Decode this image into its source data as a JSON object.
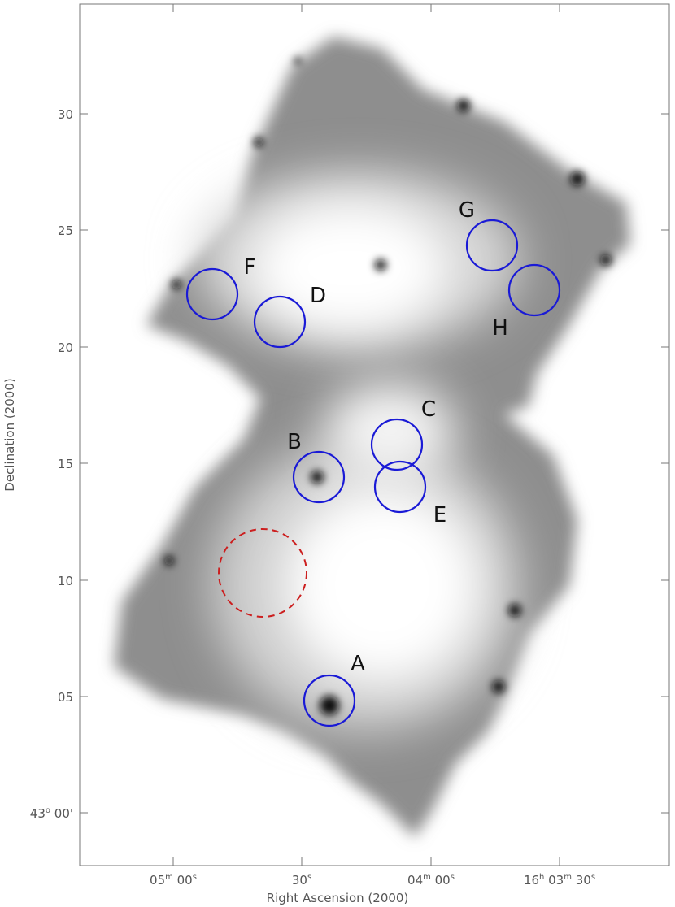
{
  "x_axis": {
    "label": "Right Ascension (2000)",
    "ticks": [
      {
        "parts": [
          "05",
          "m",
          " 00",
          "s"
        ]
      },
      {
        "parts": [
          "30",
          "s"
        ]
      },
      {
        "parts": [
          "04",
          "m",
          " 00",
          "s"
        ]
      },
      {
        "parts": [
          "16",
          "h",
          " 03",
          "m",
          " 30",
          "s"
        ]
      }
    ]
  },
  "y_axis": {
    "label": "Declination (2000)",
    "ticks": [
      {
        "parts": [
          "30"
        ]
      },
      {
        "parts": [
          "25"
        ]
      },
      {
        "parts": [
          "20"
        ]
      },
      {
        "parts": [
          "15"
        ]
      },
      {
        "parts": [
          "10"
        ]
      },
      {
        "parts": [
          "05"
        ]
      },
      {
        "parts": [
          "43",
          "o",
          " 00'"
        ]
      }
    ]
  },
  "regions": [
    {
      "label": "A"
    },
    {
      "label": "B"
    },
    {
      "label": "C"
    },
    {
      "label": "D"
    },
    {
      "label": "E"
    },
    {
      "label": "F"
    },
    {
      "label": "G"
    },
    {
      "label": "H"
    }
  ]
}
